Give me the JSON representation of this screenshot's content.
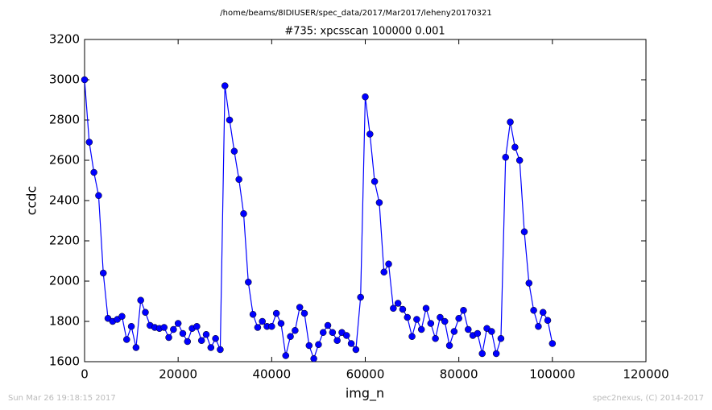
{
  "chart_data": {
    "type": "line",
    "suptitle": "/home/beams/8IDIUSER/spec_data/2017/Mar2017/leheny20170321",
    "title": "#735: xpcsscan 100000 0.001",
    "xlabel": "img_n",
    "ylabel": "ccdc",
    "footer_left": "Sun Mar 26 19:18:15 2017",
    "footer_right": "spec2nexus, (C) 2014-2017",
    "color": "#0000ff",
    "marker": "o",
    "grid": false,
    "xlim": [
      0,
      120000
    ],
    "xticks": [
      0,
      20000,
      40000,
      60000,
      80000,
      100000,
      120000
    ],
    "ylim": [
      1600,
      3200
    ],
    "yticks": [
      1600,
      1800,
      2000,
      2200,
      2400,
      2600,
      2800,
      3000,
      3200
    ],
    "x": [
      0,
      1000,
      2000,
      3000,
      4000,
      5000,
      6000,
      7000,
      8000,
      9000,
      10000,
      11000,
      12000,
      13000,
      14000,
      15000,
      16000,
      17000,
      18000,
      19000,
      20000,
      21000,
      22000,
      23000,
      24000,
      25000,
      26000,
      27000,
      28000,
      29000,
      30000,
      31000,
      32000,
      33000,
      34000,
      35000,
      36000,
      37000,
      38000,
      39000,
      40000,
      41000,
      42000,
      43000,
      44000,
      45000,
      46000,
      47000,
      48000,
      49000,
      50000,
      51000,
      52000,
      53000,
      54000,
      55000,
      56000,
      57000,
      58000,
      59000,
      60000,
      61000,
      62000,
      63000,
      64000,
      65000,
      66000,
      67000,
      68000,
      69000,
      70000,
      71000,
      72000,
      73000,
      74000,
      75000,
      76000,
      77000,
      78000,
      79000,
      80000,
      81000,
      82000,
      83000,
      84000,
      85000,
      86000,
      87000,
      88000,
      89000,
      90000,
      91000,
      92000,
      93000,
      94000,
      95000,
      96000,
      97000,
      98000,
      99000,
      100000
    ],
    "values": [
      3000,
      2690,
      2540,
      2425,
      2040,
      1815,
      1800,
      1810,
      1825,
      1710,
      1775,
      1670,
      1905,
      1845,
      1780,
      1770,
      1765,
      1770,
      1720,
      1760,
      1790,
      1740,
      1700,
      1765,
      1775,
      1705,
      1735,
      1670,
      1715,
      1660,
      2970,
      2800,
      2645,
      2505,
      2335,
      1995,
      1835,
      1770,
      1800,
      1775,
      1775,
      1840,
      1790,
      1630,
      1725,
      1755,
      1870,
      1840,
      1680,
      1615,
      1685,
      1745,
      1780,
      1745,
      1705,
      1745,
      1730,
      1690,
      1660,
      1920,
      2915,
      2730,
      2495,
      2390,
      2045,
      2085,
      1865,
      1890,
      1860,
      1820,
      1725,
      1810,
      1760,
      1865,
      1790,
      1715,
      1820,
      1800,
      1680,
      1750,
      1815,
      1855,
      1760,
      1730,
      1740,
      1640,
      1765,
      1750,
      1640,
      1715,
      2615,
      2790,
      2665,
      2600,
      2245,
      1990,
      1855,
      1775,
      1845,
      1805,
      1690
    ]
  }
}
